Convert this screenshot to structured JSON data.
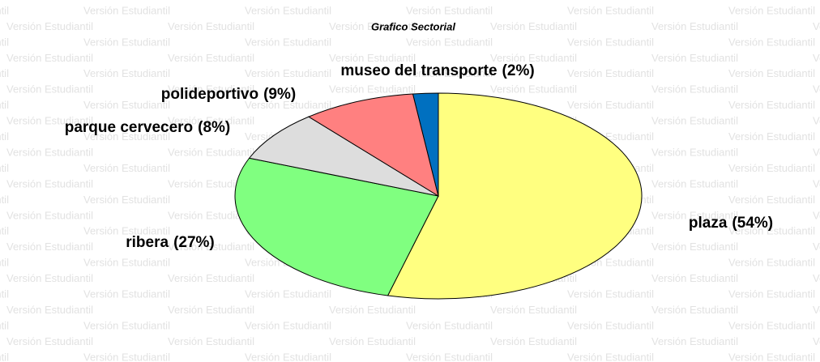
{
  "watermark": "Versión Estudiantil",
  "chart_data": {
    "type": "pie",
    "title": "Grafico Sectorial",
    "categories": [
      "plaza",
      "ribera",
      "parque cervecero",
      "polideportivo",
      "museo del transporte"
    ],
    "values": [
      54,
      27,
      8,
      9,
      2
    ],
    "value_labels": [
      "(54%)",
      "(27%)",
      "(8%)",
      "(9%)",
      "(2%)"
    ],
    "colors": [
      "#ffff80",
      "#80ff80",
      "#dddddd",
      "#ff8080",
      "#0070c0"
    ]
  }
}
